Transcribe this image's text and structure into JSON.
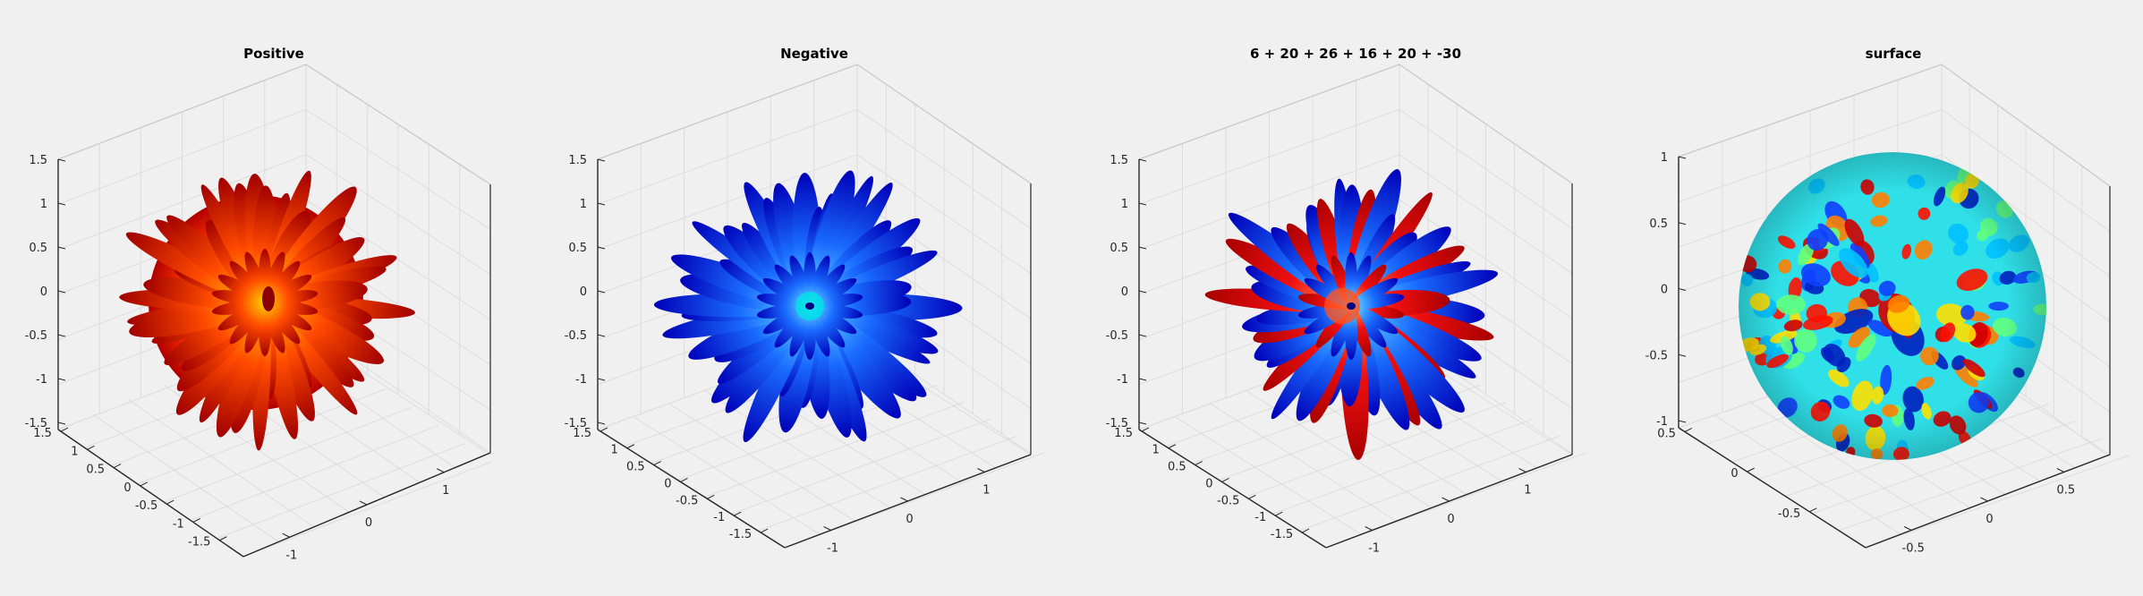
{
  "figure": {
    "background": "#f0f0f0",
    "axes_color": "#262626",
    "grid_color": "#dcdcdc"
  },
  "chart_data": [
    {
      "type": "surface3d",
      "title": "Positive",
      "colormap": "hot",
      "zticks": [
        "1.5",
        "1",
        "0.5",
        "0",
        "-0.5",
        "-1",
        "-1.5"
      ],
      "xticks": [
        "1.5",
        "1",
        "0.5",
        "0",
        "-0.5",
        "-1",
        "-1.5"
      ],
      "yticks": [
        "-1",
        "0",
        "1"
      ],
      "grid": true
    },
    {
      "type": "surface3d",
      "title": "Negative",
      "colormap": "jet-low",
      "zticks": [
        "1.5",
        "1",
        "0.5",
        "0",
        "-0.5",
        "-1",
        "-1.5"
      ],
      "xticks": [
        "1.5",
        "1",
        "0.5",
        "0",
        "-0.5",
        "-1",
        "-1.5"
      ],
      "yticks": [
        "-1",
        "0",
        "1"
      ],
      "grid": true
    },
    {
      "type": "surface3d",
      "title": "6 + 20 + 26 + 16 + 20 + -30",
      "colormap": "jet",
      "zticks": [
        "1.5",
        "1",
        "0.5",
        "0",
        "-0.5",
        "-1",
        "-1.5"
      ],
      "xticks": [
        "1.5",
        "1",
        "0.5",
        "0",
        "-0.5",
        "-1",
        "-1.5"
      ],
      "yticks": [
        "-1",
        "0",
        "1"
      ],
      "grid": true
    },
    {
      "type": "surface3d",
      "title": "surface",
      "colormap": "jet",
      "zticks": [
        "1",
        "0.5",
        "0",
        "-0.5",
        "-1"
      ],
      "xticks": [
        "0.5",
        "0",
        "-0.5"
      ],
      "yticks": [
        "-0.5",
        "0",
        "0.5"
      ],
      "grid": true
    }
  ]
}
